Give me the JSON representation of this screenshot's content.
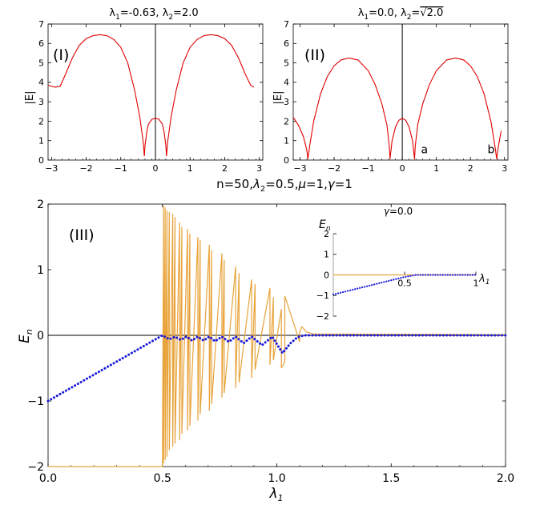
{
  "chart_data": [
    {
      "id": "I",
      "type": "line",
      "panel_label": "(I)",
      "title_parts": [
        "λ",
        "1",
        "=-0.63, ",
        "λ",
        "2",
        "=2.0"
      ],
      "ylabel": "|E|",
      "xlim": [
        -3.1,
        3.1
      ],
      "ylim": [
        0,
        7
      ],
      "x_ticks": [
        -3,
        -2,
        -1,
        0,
        1,
        2,
        3
      ],
      "x_tick_labels": [
        "−3",
        "−2",
        "−1",
        "0",
        "1",
        "2",
        "3"
      ],
      "y_ticks": [
        0,
        1,
        2,
        3,
        4,
        5,
        6,
        7
      ],
      "y_tick_labels": [
        "0",
        "1",
        "2",
        "3",
        "4",
        "5",
        "6",
        "7"
      ],
      "series": [
        {
          "name": "|E|",
          "color": "#e00000",
          "x": [
            -3.1,
            -2.9,
            -2.75,
            -2.6,
            -2.4,
            -2.2,
            -2.0,
            -1.8,
            -1.6,
            -1.4,
            -1.2,
            -1.0,
            -0.8,
            -0.6,
            -0.45,
            -0.35,
            -0.32,
            -0.3,
            -0.25,
            -0.2,
            -0.1,
            0.0,
            0.1,
            0.2,
            0.25,
            0.3,
            0.32,
            0.35,
            0.45,
            0.6,
            0.8,
            1.0,
            1.2,
            1.4,
            1.6,
            1.8,
            2.0,
            2.2,
            2.4,
            2.6,
            2.75,
            2.85
          ],
          "y": [
            3.85,
            3.75,
            3.8,
            4.4,
            5.25,
            5.9,
            6.25,
            6.4,
            6.45,
            6.4,
            6.2,
            5.8,
            5.0,
            3.6,
            2.2,
            0.9,
            0.2,
            0.75,
            1.45,
            1.85,
            2.1,
            2.15,
            2.1,
            1.85,
            1.45,
            0.75,
            0.2,
            0.9,
            2.2,
            3.6,
            5.0,
            5.8,
            6.2,
            6.4,
            6.45,
            6.4,
            6.25,
            5.9,
            5.25,
            4.4,
            3.85,
            3.75
          ]
        }
      ]
    },
    {
      "id": "II",
      "type": "line",
      "panel_label": "(II)",
      "title_parts": [
        "λ",
        "1",
        "=0.0, ",
        "λ",
        "2",
        "=",
        "√2.0"
      ],
      "ylabel": "|E|",
      "xlim": [
        -3.2,
        3.1
      ],
      "ylim": [
        0,
        7
      ],
      "x_ticks": [
        -3,
        -2,
        -1,
        0,
        1,
        2,
        3
      ],
      "x_tick_labels": [
        "−3",
        "−2",
        "−1",
        "0",
        "1",
        "2",
        "3"
      ],
      "y_ticks": [
        0,
        1,
        2,
        3,
        4,
        5,
        6,
        7
      ],
      "y_tick_labels": [
        "0",
        "1",
        "2",
        "3",
        "4",
        "5",
        "6",
        "7"
      ],
      "annotations": [
        {
          "text": "a",
          "x": 0.55,
          "y": 0.35
        },
        {
          "text": "b",
          "x": 2.5,
          "y": 0.35
        }
      ],
      "series": [
        {
          "name": "|E|",
          "color": "#e00000",
          "x": [
            -3.2,
            -3.05,
            -2.9,
            -2.8,
            -2.77,
            -2.72,
            -2.6,
            -2.4,
            -2.2,
            -2.0,
            -1.8,
            -1.57,
            -1.3,
            -1.0,
            -0.8,
            -0.6,
            -0.45,
            -0.38,
            -0.36,
            -0.3,
            -0.2,
            -0.1,
            0.0,
            0.1,
            0.2,
            0.3,
            0.36,
            0.38,
            0.45,
            0.6,
            0.8,
            1.0,
            1.3,
            1.57,
            1.8,
            2.0,
            2.2,
            2.4,
            2.6,
            2.72,
            2.77,
            2.8,
            2.9
          ],
          "y": [
            2.2,
            1.8,
            1.2,
            0.5,
            0.05,
            0.7,
            2.0,
            3.4,
            4.3,
            4.85,
            5.15,
            5.25,
            5.15,
            4.6,
            3.9,
            2.9,
            1.8,
            0.7,
            0.05,
            1.0,
            1.7,
            2.05,
            2.15,
            2.05,
            1.7,
            1.0,
            0.05,
            0.7,
            1.8,
            2.9,
            3.9,
            4.6,
            5.15,
            5.25,
            5.15,
            4.85,
            4.3,
            3.4,
            2.0,
            0.7,
            0.05,
            0.5,
            1.5
          ]
        }
      ]
    },
    {
      "id": "III",
      "type": "line",
      "panel_label": "(III)",
      "title_parts": [
        "n=50,",
        "λ",
        "2",
        "=0.5,",
        "μ",
        "=1,",
        "γ",
        "=1"
      ],
      "xlabel_parts": [
        "λ",
        "1"
      ],
      "ylabel_parts": [
        "E",
        "n"
      ],
      "xlim": [
        0,
        2
      ],
      "ylim": [
        -2,
        2
      ],
      "x_ticks": [
        0,
        0.5,
        1,
        1.5,
        2
      ],
      "x_tick_labels": [
        "0.0",
        "0.5",
        "1.0",
        "1.5",
        "2.0"
      ],
      "y_ticks": [
        -2,
        -1,
        0,
        1,
        2
      ],
      "y_tick_labels": [
        "−2",
        "−1",
        "0",
        "1",
        "2"
      ],
      "series": [
        {
          "name": "blue mode",
          "color": "#1a1adb",
          "style": "dotted",
          "x": [
            0.0,
            0.5,
            0.53,
            0.555,
            0.58,
            0.605,
            0.63,
            0.655,
            0.68,
            0.705,
            0.73,
            0.76,
            0.79,
            0.82,
            0.855,
            0.89,
            0.935,
            0.98,
            1.025,
            1.06,
            1.09,
            1.12,
            2.0
          ],
          "y": [
            -1.0,
            0.0,
            -0.06,
            -0.02,
            -0.07,
            -0.02,
            -0.08,
            -0.02,
            -0.08,
            -0.02,
            -0.09,
            -0.02,
            -0.1,
            -0.02,
            -0.12,
            -0.02,
            -0.15,
            -0.02,
            -0.27,
            -0.12,
            -0.03,
            0.0,
            0.0
          ]
        },
        {
          "name": "orange modes",
          "color": "#e8a33a",
          "style": "solid",
          "x": [
            0.0,
            0.495,
            0.5,
            0.505,
            0.505,
            0.512,
            0.512,
            0.52,
            0.52,
            0.53,
            0.53,
            0.545,
            0.545,
            0.555,
            0.555,
            0.575,
            0.575,
            0.585,
            0.585,
            0.61,
            0.61,
            0.62,
            0.62,
            0.655,
            0.655,
            0.665,
            0.665,
            0.705,
            0.705,
            0.715,
            0.715,
            0.76,
            0.76,
            0.77,
            0.77,
            0.82,
            0.82,
            0.835,
            0.835,
            0.89,
            0.89,
            0.905,
            0.905,
            0.97,
            0.97,
            0.985,
            0.985,
            1.02,
            1.02,
            1.035,
            1.035,
            1.1,
            1.1,
            1.11,
            1.13,
            1.16,
            2.0
          ],
          "y": [
            -2.0,
            -2.0,
            -2.0,
            1.98,
            -1.95,
            1.95,
            -1.9,
            1.9,
            -1.85,
            1.88,
            -1.75,
            1.85,
            -1.7,
            1.8,
            -1.65,
            1.72,
            -1.6,
            1.65,
            -1.5,
            1.62,
            -1.45,
            1.55,
            -1.38,
            1.5,
            -1.3,
            1.45,
            -1.2,
            1.38,
            -1.15,
            1.3,
            -1.05,
            1.25,
            -0.95,
            1.15,
            -0.88,
            1.05,
            -0.8,
            0.95,
            -0.72,
            0.85,
            -0.65,
            0.78,
            -0.52,
            0.72,
            -0.45,
            0.58,
            -0.38,
            0.4,
            -0.5,
            -0.4,
            0.6,
            -0.1,
            0.05,
            0.13,
            0.05,
            0.02,
            0.01
          ]
        }
      ],
      "inset": {
        "title_parts": [
          "γ",
          "=0.0"
        ],
        "xlabel_parts": [
          "λ",
          "1"
        ],
        "ylabel_parts": [
          "E",
          "n"
        ],
        "xlim": [
          0,
          1
        ],
        "ylim": [
          -2,
          2
        ],
        "x_ticks": [
          0.5,
          1
        ],
        "x_tick_labels": [
          "0.5",
          "1"
        ],
        "y_ticks": [
          -2,
          -1,
          0,
          1,
          2
        ],
        "y_tick_labels": [
          "−2",
          "−1",
          "0",
          "1",
          "2"
        ],
        "series": [
          {
            "name": "blue",
            "color": "#1a1adb",
            "style": "dotted",
            "x": [
              0.0,
              0.5,
              0.58,
              1.0
            ],
            "y": [
              -0.95,
              -0.1,
              0.0,
              0.0
            ]
          },
          {
            "name": "orange",
            "color": "#e8a33a",
            "style": "solid",
            "x": [
              0.0,
              1.0
            ],
            "y": [
              0.0,
              0.0
            ]
          }
        ]
      }
    }
  ]
}
